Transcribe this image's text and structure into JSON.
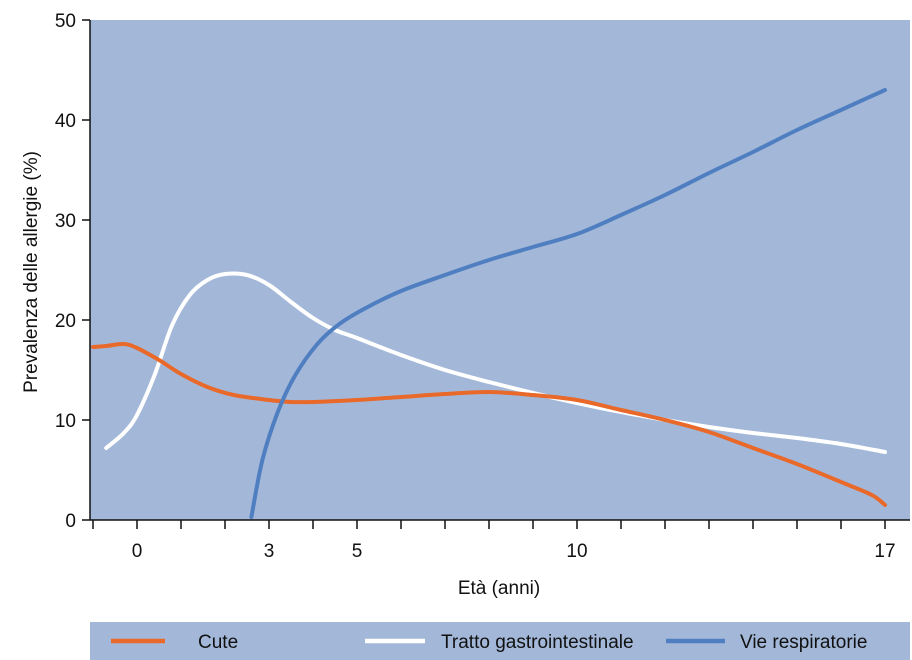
{
  "chart_data": {
    "type": "line",
    "xlabel": "Età (anni)",
    "ylabel": "Prevalenza delle allergie (%)",
    "xlim": [
      -1,
      17.5
    ],
    "ylim": [
      0,
      50
    ],
    "x_tick_labels": [
      "0",
      "3",
      "5",
      "10",
      "17"
    ],
    "y_ticks": [
      0,
      10,
      20,
      30,
      40,
      50
    ],
    "legend_position": "bottom",
    "colors": {
      "plot_background": "#a3b8d9",
      "legend_background": "#a3b8d9"
    },
    "series": [
      {
        "name": "Cute",
        "color": "#e8692a",
        "points": [
          [
            -1,
            17.3
          ],
          [
            -0.7,
            17.4
          ],
          [
            -0.3,
            17.6
          ],
          [
            0,
            17.2
          ],
          [
            0.5,
            16.0
          ],
          [
            1.0,
            14.6
          ],
          [
            1.6,
            13.3
          ],
          [
            2.2,
            12.5
          ],
          [
            3,
            12.0
          ],
          [
            3.5,
            11.8
          ],
          [
            4,
            11.8
          ],
          [
            5,
            12.0
          ],
          [
            6,
            12.3
          ],
          [
            7,
            12.6
          ],
          [
            8,
            12.8
          ],
          [
            9,
            12.5
          ],
          [
            10,
            12.0
          ],
          [
            11,
            11.0
          ],
          [
            12,
            10.0
          ],
          [
            13,
            8.8
          ],
          [
            14,
            7.2
          ],
          [
            15,
            5.6
          ],
          [
            16,
            3.8
          ],
          [
            16.7,
            2.5
          ],
          [
            17,
            1.5
          ]
        ]
      },
      {
        "name": "Tratto gastrointestinale",
        "color": "#ffffff",
        "points": [
          [
            -0.7,
            7.2
          ],
          [
            -0.3,
            8.7
          ],
          [
            0,
            10.5
          ],
          [
            0.4,
            14.5
          ],
          [
            0.8,
            19.5
          ],
          [
            1.2,
            22.5
          ],
          [
            1.6,
            24.0
          ],
          [
            2.0,
            24.6
          ],
          [
            2.5,
            24.5
          ],
          [
            3,
            23.5
          ],
          [
            3.5,
            21.8
          ],
          [
            4,
            20.2
          ],
          [
            4.5,
            19.0
          ],
          [
            5,
            18.2
          ],
          [
            6,
            16.5
          ],
          [
            7,
            15.0
          ],
          [
            8,
            13.8
          ],
          [
            9,
            12.7
          ],
          [
            10,
            11.7
          ],
          [
            11,
            10.8
          ],
          [
            12,
            10.0
          ],
          [
            13,
            9.3
          ],
          [
            14,
            8.7
          ],
          [
            15,
            8.2
          ],
          [
            16,
            7.6
          ],
          [
            17,
            6.8
          ]
        ]
      },
      {
        "name": "Vie respiratorie",
        "color": "#4f7fc0",
        "points": [
          [
            2.6,
            0.3
          ],
          [
            2.85,
            6.0
          ],
          [
            3.2,
            10.8
          ],
          [
            3.6,
            14.5
          ],
          [
            4.1,
            17.6
          ],
          [
            4.6,
            19.6
          ],
          [
            5.2,
            21.2
          ],
          [
            6.0,
            22.9
          ],
          [
            7.0,
            24.5
          ],
          [
            8.0,
            26.0
          ],
          [
            9.0,
            27.3
          ],
          [
            10.0,
            28.6
          ],
          [
            11.0,
            30.5
          ],
          [
            12.0,
            32.5
          ],
          [
            13.0,
            34.7
          ],
          [
            14.0,
            36.8
          ],
          [
            15.0,
            39.0
          ],
          [
            16.0,
            41.0
          ],
          [
            17.0,
            43.0
          ]
        ]
      }
    ]
  }
}
